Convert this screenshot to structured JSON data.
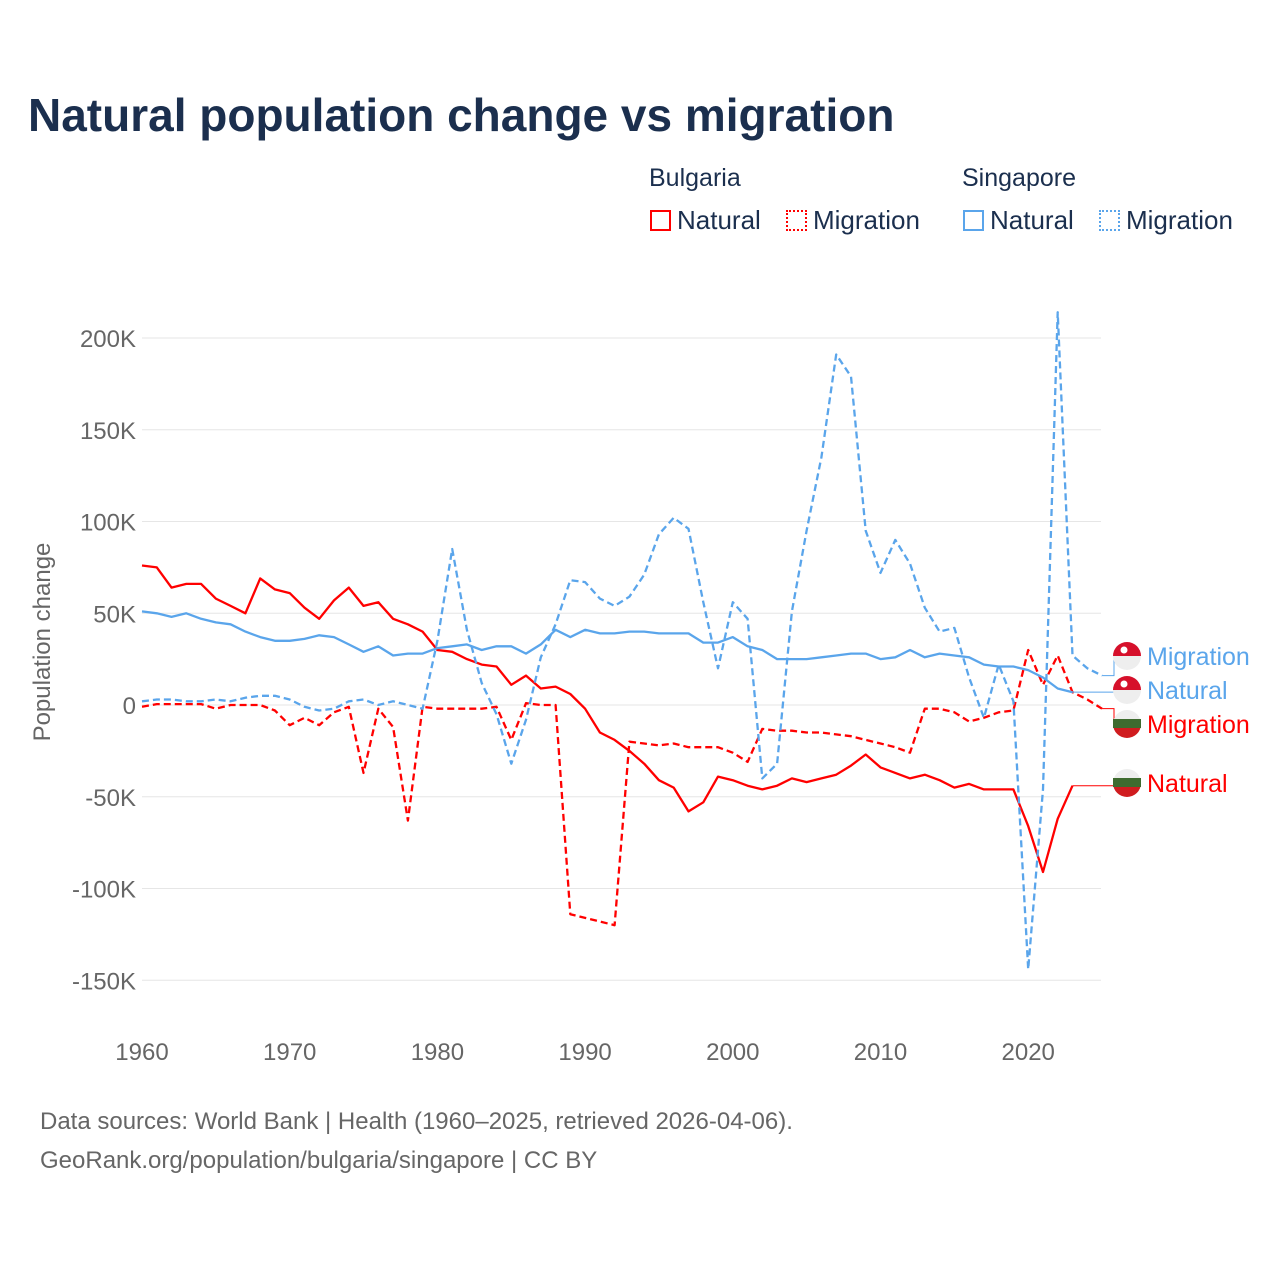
{
  "title": "Natural population change vs migration",
  "legend": {
    "groups": [
      {
        "name": "Bulgaria",
        "items": [
          {
            "label": "Natural",
            "style": "solid"
          },
          {
            "label": "Migration",
            "style": "dotted"
          }
        ],
        "color": "#ff0000"
      },
      {
        "name": "Singapore",
        "items": [
          {
            "label": "Natural",
            "style": "solid"
          },
          {
            "label": "Migration",
            "style": "dotted"
          }
        ],
        "color": "#5aa5eb"
      }
    ]
  },
  "footer": {
    "line1": "Data sources: World Bank | Health (1960–2025, retrieved 2026-04-06).",
    "line2": "GeoRank.org/population/bulgaria/singapore | CC BY"
  },
  "chart_data": {
    "type": "line",
    "title": "Natural population change vs migration",
    "xlabel": "",
    "ylabel": "Population change",
    "xlim": [
      1960,
      2025
    ],
    "ylim": [
      -170000,
      230000
    ],
    "x_ticks": [
      1960,
      1970,
      1980,
      1990,
      2000,
      2010,
      2020
    ],
    "x_tick_labels": [
      "1960",
      "1970",
      "1980",
      "1990",
      "2000",
      "2010",
      "2020"
    ],
    "y_ticks": [
      -150000,
      -100000,
      -50000,
      0,
      50000,
      100000,
      150000,
      200000
    ],
    "y_tick_labels": [
      "-150K",
      "-100K",
      "-50K",
      "0",
      "50K",
      "100K",
      "150K",
      "200K"
    ],
    "grid": true,
    "x_start": 1960,
    "series": [
      {
        "name": "Bulgaria Natural",
        "end_label": "Natural",
        "color": "#ff0000",
        "dash": false,
        "values_k": [
          76,
          75,
          64,
          66,
          66,
          58,
          54,
          50,
          69,
          63,
          61,
          53,
          47,
          57,
          64,
          54,
          56,
          47,
          44,
          40,
          30,
          29,
          25,
          22,
          21,
          11,
          16,
          9,
          10,
          6,
          -2,
          -15,
          -19,
          -25,
          -32,
          -41,
          -45,
          -58,
          -53,
          -39,
          -41,
          -44,
          -46,
          -44,
          -40,
          -42,
          -40,
          -38,
          -33,
          -27,
          -34,
          -37,
          -40,
          -38,
          -41,
          -45,
          -43,
          -46,
          -46,
          -46,
          -66,
          -91,
          -62,
          -44
        ]
      },
      {
        "name": "Bulgaria Migration",
        "end_label": "Migration",
        "color": "#ff0000",
        "dash": true,
        "values_k": [
          -1,
          0.5,
          0.5,
          0.5,
          0.5,
          -2,
          0,
          0,
          0,
          -3,
          -11,
          -7,
          -11,
          -4,
          -1,
          -37,
          -2,
          -12,
          -63,
          -1,
          -2,
          -2,
          -2,
          -2,
          -1,
          -19,
          1,
          0,
          0,
          -114,
          -116,
          -118,
          -120,
          -20,
          -21,
          -22,
          -21,
          -23,
          -23,
          -23,
          -26,
          -31,
          -13,
          -14,
          -14,
          -15,
          -15,
          -16,
          -17,
          -19,
          -21,
          -23,
          -26,
          -2,
          -2,
          -4,
          -9,
          -7,
          -4,
          -3,
          30,
          11,
          27,
          7,
          3,
          -2
        ]
      },
      {
        "name": "Singapore Natural",
        "end_label": "Natural",
        "color": "#5aa5eb",
        "dash": false,
        "values_k": [
          51,
          50,
          48,
          50,
          47,
          45,
          44,
          40,
          37,
          35,
          35,
          36,
          38,
          37,
          33,
          29,
          32,
          27,
          28,
          28,
          31,
          32,
          33,
          30,
          32,
          32,
          28,
          33,
          41,
          37,
          41,
          39,
          39,
          40,
          40,
          39,
          39,
          39,
          34,
          34,
          37,
          32,
          30,
          25,
          25,
          25,
          26,
          27,
          28,
          28,
          25,
          26,
          30,
          26,
          28,
          27,
          26,
          22,
          21,
          21,
          19,
          15,
          9,
          7
        ]
      },
      {
        "name": "Singapore Migration",
        "end_label": "Migration",
        "color": "#5aa5eb",
        "dash": true,
        "values_k": [
          2,
          3,
          3,
          2,
          2,
          3,
          2,
          4,
          5,
          5,
          3,
          -1,
          -3,
          -2,
          2,
          3,
          0,
          2,
          0,
          -2,
          35,
          85,
          41,
          12,
          -5,
          -32,
          -8,
          26,
          44,
          68,
          67,
          58,
          54,
          59,
          71,
          93,
          102,
          96,
          56,
          20,
          56,
          47,
          -40,
          -32,
          51,
          95,
          135,
          191,
          179,
          95,
          72,
          90,
          77,
          53,
          40,
          42,
          15,
          -7,
          22,
          2,
          -144,
          -46,
          214,
          27,
          20,
          16
        ]
      }
    ]
  }
}
